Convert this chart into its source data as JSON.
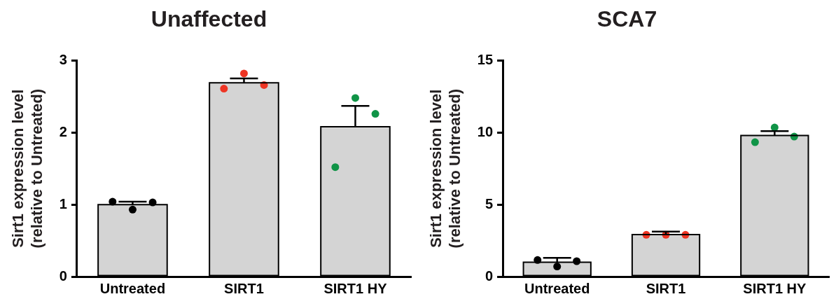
{
  "chart_data": [
    {
      "type": "bar",
      "title": "Unaffected",
      "ylabel": "Sirt1 expression level\n(relative to Untreated)",
      "categories": [
        "Untreated",
        "SIRT1",
        "SIRT1 HY"
      ],
      "ylim": [
        0,
        3
      ],
      "yticks": [
        0,
        1,
        2,
        3
      ],
      "grid": false,
      "legend": false,
      "series": [
        {
          "color": "#d4d4d4",
          "values": [
            1.0,
            2.69,
            2.08
          ],
          "errors": [
            0.04,
            0.06,
            0.29
          ]
        },
        {
          "type": "scatter",
          "x": [
            "Untreated",
            "Untreated",
            "Untreated",
            "SIRT1",
            "SIRT1",
            "SIRT1",
            "SIRT1 HY",
            "SIRT1 HY",
            "SIRT1 HY"
          ],
          "values": [
            1.04,
            0.93,
            1.03,
            2.61,
            2.82,
            2.66,
            1.52,
            2.48,
            2.26
          ],
          "colors": [
            "#000000",
            "#000000",
            "#000000",
            "#ee3524",
            "#ee3524",
            "#ee3524",
            "#109447",
            "#109447",
            "#109447"
          ]
        }
      ]
    },
    {
      "type": "bar",
      "title": "SCA7",
      "ylabel": "Sirt1 expression level\n(relative to Untreated)",
      "categories": [
        "Untreated",
        "SIRT1",
        "SIRT1 HY"
      ],
      "ylim": [
        0,
        15
      ],
      "yticks": [
        0,
        5,
        10,
        15
      ],
      "grid": false,
      "legend": false,
      "series": [
        {
          "color": "#d4d4d4",
          "values": [
            1.0,
            2.92,
            9.8
          ],
          "errors": [
            0.3,
            0.2,
            0.3
          ]
        },
        {
          "type": "scatter",
          "x": [
            "Untreated",
            "Untreated",
            "Untreated",
            "SIRT1",
            "SIRT1",
            "SIRT1",
            "SIRT1 HY",
            "SIRT1 HY",
            "SIRT1 HY"
          ],
          "values": [
            1.15,
            0.7,
            1.07,
            2.9,
            2.9,
            2.9,
            9.33,
            10.35,
            9.72
          ],
          "colors": [
            "#000000",
            "#000000",
            "#000000",
            "#ee3524",
            "#ee3524",
            "#ee3524",
            "#109447",
            "#109447",
            "#109447"
          ]
        }
      ]
    }
  ]
}
